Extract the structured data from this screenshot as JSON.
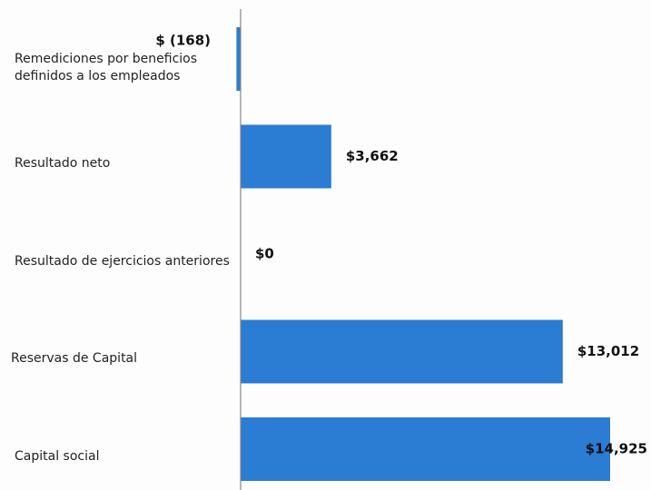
{
  "chart_data": {
    "type": "bar",
    "orientation": "horizontal",
    "categories": [
      "Remediciones por beneficios definidos a los empleados",
      "Resultado neto",
      "Resultado de ejercicios anteriores",
      "Reservas de Capital",
      "Capital social"
    ],
    "values": [
      -168,
      3662,
      0,
      13012,
      14925
    ],
    "value_labels": [
      "$ (168)",
      "$3,662",
      "$0",
      "$13,012",
      "$14,925"
    ],
    "color": "#2b7cd3"
  }
}
